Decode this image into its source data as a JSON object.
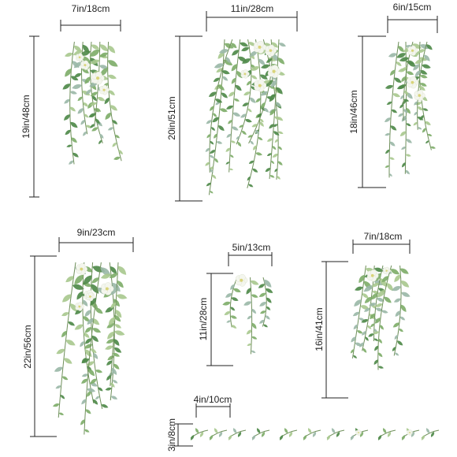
{
  "decals": [
    {
      "id": "decal-1",
      "width_label": "7in/18cm",
      "height_label": "19in/48cm"
    },
    {
      "id": "decal-2",
      "width_label": "11in/28cm",
      "height_label": "20in/51cm"
    },
    {
      "id": "decal-3",
      "width_label": "6in/15cm",
      "height_label": "18in/46cm"
    },
    {
      "id": "decal-4",
      "width_label": "9in/23cm",
      "height_label": "22in/56cm"
    },
    {
      "id": "decal-5",
      "width_label": "5in/13cm",
      "height_label": "11in/28cm"
    },
    {
      "id": "decal-6",
      "width_label": "7in/18cm",
      "height_label": "16in/41cm"
    },
    {
      "id": "decal-7",
      "width_label": "4in/10cm",
      "height_label": "3in/8cm"
    }
  ],
  "colors": {
    "leaf_dark": "#4f8a4a",
    "leaf_mid": "#7fae6a",
    "leaf_light": "#a9c98f",
    "leaf_sage": "#9bb8a8",
    "flower": "#f4f6ee",
    "stem": "#6f8f5a",
    "line": "#222222"
  }
}
